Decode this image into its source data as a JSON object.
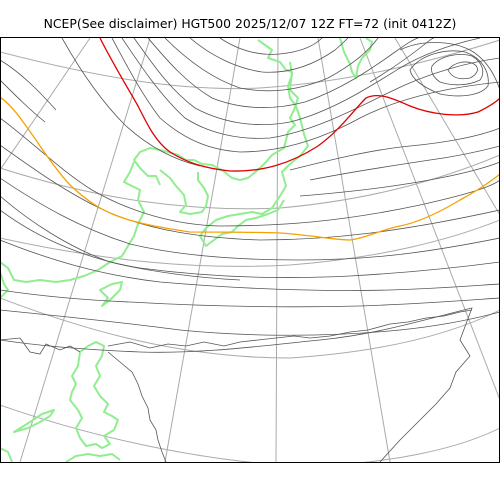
{
  "title": "NCEP(See disclaimer) HGT500 2025/12/07 12Z FT=72 (init 0412Z)",
  "colors": {
    "frame": "#000000",
    "graticule": "#aaaaaa",
    "coastline": "#90ee90",
    "contour": "#555555",
    "highlight_contour_red": "#dd0000",
    "highlight_contour_orange": "#f5a300"
  }
}
